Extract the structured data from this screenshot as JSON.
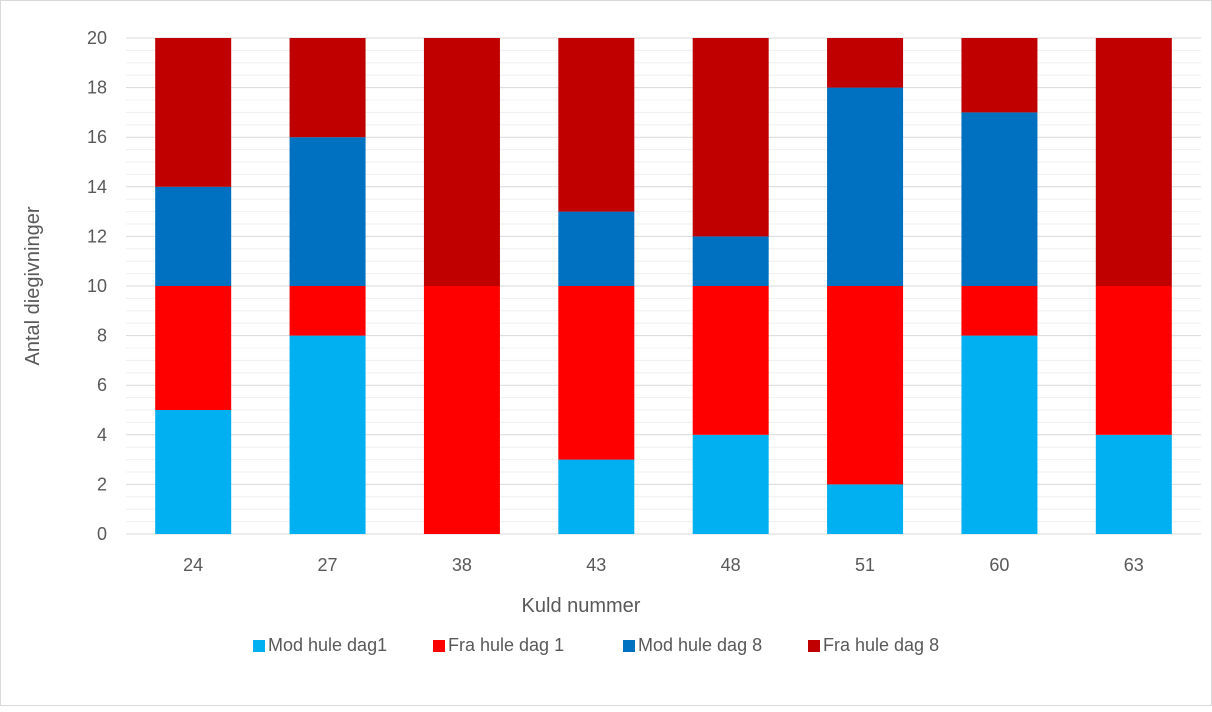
{
  "chart_data": {
    "type": "bar",
    "stacked": true,
    "categories": [
      "24",
      "27",
      "38",
      "43",
      "48",
      "51",
      "60",
      "63"
    ],
    "series": [
      {
        "name": "Mod hule dag1",
        "color": "#00b0f0",
        "values": [
          5,
          8,
          0,
          3,
          4,
          2,
          8,
          4
        ]
      },
      {
        "name": "Fra hule dag 1",
        "color": "#ff0000",
        "values": [
          5,
          2,
          10,
          7,
          6,
          8,
          2,
          6
        ]
      },
      {
        "name": "Mod hule dag 8",
        "color": "#0070c0",
        "values": [
          4,
          6,
          0,
          3,
          2,
          8,
          7,
          0
        ]
      },
      {
        "name": "Fra hule dag 8",
        "color": "#c00000",
        "values": [
          6,
          4,
          10,
          7,
          8,
          2,
          3,
          10
        ]
      }
    ],
    "xlabel": "Kuld nummer",
    "ylabel": "Antal diegivninger",
    "ylim": [
      0,
      20
    ],
    "ymajor_ticks": [
      0,
      2,
      4,
      6,
      8,
      10,
      12,
      14,
      16,
      18,
      20
    ],
    "grid": true,
    "legend": "bottom"
  }
}
